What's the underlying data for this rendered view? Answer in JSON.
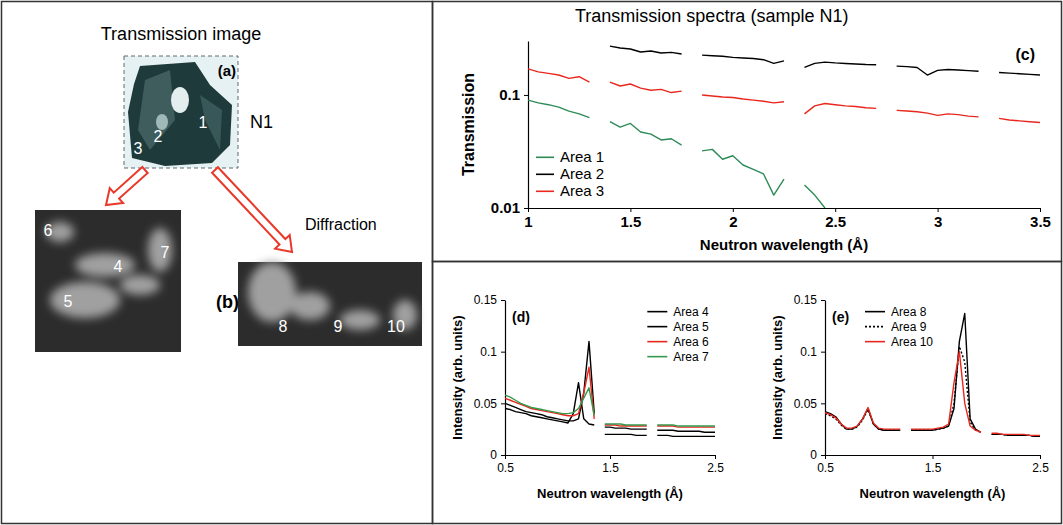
{
  "chart_data": [
    {
      "type": "line",
      "title": "Transmission spectra (sample N1)",
      "annotations": [
        "(c)"
      ],
      "xlabel": "Neutron wavelength (Å)",
      "ylabel": "Transmission",
      "log": "y",
      "x": [
        1,
        1.05,
        1.1,
        1.15,
        1.2,
        1.25,
        1.3,
        1.35,
        1.4,
        1.45,
        1.5,
        1.55,
        1.6,
        1.65,
        1.7,
        1.75,
        1.8,
        1.85,
        1.9,
        1.95,
        2,
        2.05,
        2.1,
        2.15,
        2.2,
        2.25,
        2.3,
        2.35,
        2.4,
        2.45,
        2.5,
        2.55,
        2.6,
        2.65,
        2.7,
        2.75,
        2.8,
        2.85,
        2.9,
        2.95,
        3,
        3.05,
        3.1,
        3.15,
        3.2,
        3.25,
        3.3,
        3.35,
        3.4,
        3.45,
        3.5
      ],
      "xlim": [
        1,
        3.5
      ],
      "xticks": [
        1,
        1.5,
        2,
        2.5,
        3,
        3.5
      ],
      "ylim": [
        0.01,
        0.3
      ],
      "yticks": [
        0.01,
        0.1
      ],
      "legend": "lower left",
      "series": [
        {
          "name": "Area 1",
          "color": "#2e8b57",
          "line_style": "solid",
          "values": [
            0.09,
            0.085,
            0.082,
            0.078,
            0.072,
            0.068,
            0.063,
            null,
            0.058,
            0.052,
            0.056,
            0.047,
            0.045,
            0.04,
            0.041,
            0.036,
            null,
            0.032,
            0.033,
            0.027,
            0.029,
            0.024,
            0.022,
            0.02,
            0.013,
            0.018,
            null,
            0.016,
            0.013,
            0.01,
            null,
            null,
            null,
            null,
            null,
            null,
            null,
            null,
            null,
            null,
            null,
            null,
            null,
            null,
            null,
            null,
            null,
            null,
            null,
            null,
            null
          ]
        },
        {
          "name": "Area 2",
          "color": "#000000",
          "line_style": "solid",
          "values": [
            null,
            null,
            null,
            null,
            null,
            null,
            null,
            null,
            0.27,
            0.26,
            0.255,
            0.24,
            0.245,
            0.235,
            0.238,
            0.23,
            null,
            0.225,
            0.222,
            0.22,
            0.215,
            0.212,
            0.21,
            0.205,
            0.19,
            0.2,
            null,
            0.175,
            0.19,
            0.195,
            0.192,
            0.19,
            0.188,
            0.186,
            0.185,
            null,
            0.18,
            0.178,
            0.175,
            0.15,
            0.165,
            0.168,
            0.166,
            0.164,
            0.162,
            null,
            0.158,
            0.156,
            0.154,
            0.152,
            0.15
          ]
        },
        {
          "name": "Area 3",
          "color": "#e8281e",
          "line_style": "solid",
          "values": [
            0.17,
            0.16,
            0.155,
            0.15,
            0.14,
            0.145,
            0.13,
            null,
            0.13,
            0.12,
            0.125,
            0.115,
            0.11,
            0.112,
            0.105,
            0.108,
            null,
            0.1,
            0.098,
            0.096,
            0.095,
            0.092,
            0.09,
            0.088,
            0.085,
            0.087,
            null,
            0.068,
            0.08,
            0.084,
            0.082,
            0.08,
            0.079,
            0.077,
            0.076,
            null,
            0.073,
            0.072,
            0.071,
            0.069,
            0.066,
            0.068,
            0.067,
            0.065,
            0.064,
            null,
            0.062,
            0.06,
            0.059,
            0.058,
            0.057
          ]
        }
      ]
    },
    {
      "type": "line",
      "annotations": [
        "(d)"
      ],
      "xlabel": "Neutron wavelength (Å)",
      "ylabel": "Intensity (arb. units)",
      "x": [
        0.5,
        0.55,
        0.6,
        0.65,
        0.7,
        0.75,
        0.8,
        0.85,
        0.9,
        0.95,
        1,
        1.05,
        1.1,
        1.15,
        1.2,
        1.25,
        1.3,
        1.35,
        1.4,
        1.45,
        1.5,
        1.55,
        1.6,
        1.65,
        1.7,
        1.75,
        1.8,
        1.85,
        1.9,
        1.95,
        2,
        2.05,
        2.1,
        2.15,
        2.2,
        2.25,
        2.3,
        2.35,
        2.4,
        2.45,
        2.5
      ],
      "xlim": [
        0.5,
        2.5
      ],
      "xticks": [
        0.5,
        1.5,
        2.5
      ],
      "ylim": [
        0,
        0.15
      ],
      "yticks": [
        0,
        0.05,
        0.1,
        0.15
      ],
      "legend": "upper right",
      "series": [
        {
          "name": "Area 4",
          "color": "#000000",
          "line_style": "solid",
          "values": [
            0.045,
            0.044,
            0.042,
            0.041,
            0.04,
            0.038,
            0.037,
            0.036,
            0.035,
            0.034,
            0.033,
            0.032,
            0.031,
            0.04,
            0.07,
            0.035,
            0.03,
            0.029,
            null,
            0.027,
            0.027,
            0.026,
            0.026,
            0.026,
            0.025,
            0.025,
            0.025,
            0.025,
            null,
            0.024,
            0.024,
            0.024,
            0.024,
            0.023,
            0.023,
            0.023,
            0.023,
            0.023,
            0.022,
            0.022,
            0.022
          ]
        },
        {
          "name": "Area 5",
          "color": "#000000",
          "line_style": "solid",
          "values": [
            0.05,
            0.048,
            0.046,
            0.044,
            0.042,
            0.041,
            0.04,
            0.039,
            0.037,
            0.036,
            0.035,
            0.034,
            0.033,
            0.033,
            0.035,
            0.06,
            0.11,
            0.04,
            null,
            0.02,
            0.02,
            0.02,
            0.02,
            0.02,
            0.02,
            0.019,
            0.019,
            0.019,
            null,
            0.019,
            0.019,
            0.019,
            0.018,
            0.018,
            0.018,
            0.018,
            0.018,
            0.018,
            0.018,
            0.018,
            0.018
          ]
        },
        {
          "name": "Area 6",
          "color": "#e8281e",
          "line_style": "solid",
          "values": [
            0.055,
            0.053,
            0.051,
            0.049,
            0.047,
            0.045,
            0.044,
            0.043,
            0.042,
            0.041,
            0.04,
            0.039,
            0.038,
            0.038,
            0.04,
            0.06,
            0.085,
            0.035,
            null,
            0.029,
            0.029,
            0.029,
            0.028,
            0.028,
            0.028,
            0.028,
            0.028,
            0.028,
            null,
            0.028,
            0.028,
            0.028,
            0.028,
            0.027,
            0.027,
            0.027,
            0.027,
            0.027,
            0.027,
            0.027,
            0.027
          ]
        },
        {
          "name": "Area 7",
          "color": "#33994d",
          "line_style": "solid",
          "values": [
            0.058,
            0.056,
            0.053,
            0.05,
            0.048,
            0.046,
            0.045,
            0.044,
            0.043,
            0.042,
            0.041,
            0.04,
            0.04,
            0.041,
            0.045,
            0.055,
            0.065,
            0.038,
            null,
            0.03,
            0.03,
            0.03,
            0.03,
            0.029,
            0.029,
            0.029,
            0.029,
            0.029,
            null,
            0.029,
            0.029,
            0.029,
            0.029,
            0.028,
            0.028,
            0.028,
            0.028,
            0.028,
            0.028,
            0.028,
            0.028
          ]
        }
      ]
    },
    {
      "type": "line",
      "annotations": [
        "(e)"
      ],
      "xlabel": "Neutron wavelength (Å)",
      "ylabel": "Intensity (arb. units)",
      "x": [
        0.5,
        0.55,
        0.6,
        0.65,
        0.7,
        0.75,
        0.8,
        0.85,
        0.9,
        0.95,
        1,
        1.05,
        1.1,
        1.15,
        1.2,
        1.25,
        1.3,
        1.35,
        1.4,
        1.45,
        1.5,
        1.55,
        1.6,
        1.65,
        1.7,
        1.75,
        1.8,
        1.85,
        1.9,
        1.95,
        2,
        2.05,
        2.1,
        2.15,
        2.2,
        2.25,
        2.3,
        2.35,
        2.4,
        2.45,
        2.5
      ],
      "xlim": [
        0.5,
        2.5
      ],
      "xticks": [
        0.5,
        1.5,
        2.5
      ],
      "ylim": [
        0,
        0.15
      ],
      "yticks": [
        0,
        0.05,
        0.1,
        0.15
      ],
      "legend": "upper left",
      "series": [
        {
          "name": "Area 8",
          "color": "#000000",
          "line_style": "solid",
          "values": [
            0.042,
            0.04,
            0.037,
            0.03,
            0.025,
            0.025,
            0.028,
            0.035,
            0.045,
            0.03,
            0.025,
            0.024,
            0.024,
            0.024,
            0.024,
            null,
            0.024,
            0.024,
            0.024,
            0.024,
            0.024,
            0.025,
            0.026,
            0.028,
            0.045,
            0.11,
            0.137,
            0.035,
            0.025,
            0.022,
            null,
            0.02,
            0.02,
            0.02,
            0.019,
            0.019,
            0.019,
            0.019,
            0.019,
            0.018,
            0.018
          ]
        },
        {
          "name": "Area 9",
          "color": "#000000",
          "line_style": "dotted",
          "values": [
            0.04,
            0.038,
            0.035,
            0.029,
            0.025,
            0.025,
            0.027,
            0.034,
            0.044,
            0.03,
            0.025,
            0.024,
            0.024,
            0.024,
            0.024,
            null,
            0.024,
            0.024,
            0.024,
            0.024,
            0.024,
            0.025,
            0.026,
            0.028,
            0.05,
            0.105,
            0.09,
            0.032,
            0.024,
            0.022,
            null,
            0.02,
            0.02,
            0.02,
            0.019,
            0.019,
            0.019,
            0.019,
            0.019,
            0.018,
            0.018
          ]
        },
        {
          "name": "Area 10",
          "color": "#e8281e",
          "line_style": "solid",
          "values": [
            0.041,
            0.039,
            0.036,
            0.03,
            0.026,
            0.026,
            0.028,
            0.035,
            0.046,
            0.031,
            0.026,
            0.025,
            0.025,
            0.025,
            0.025,
            null,
            0.025,
            0.025,
            0.025,
            0.025,
            0.025,
            0.026,
            0.027,
            0.03,
            0.07,
            0.1,
            0.05,
            0.028,
            0.024,
            0.022,
            null,
            0.021,
            0.021,
            0.02,
            0.02,
            0.02,
            0.02,
            0.02,
            0.019,
            0.019,
            0.019
          ]
        }
      ]
    }
  ],
  "panels": {
    "transmission_image": {
      "title": "Transmission image",
      "letter": "(a)",
      "sample": "N1",
      "areas": [
        "1",
        "2",
        "3"
      ]
    },
    "diffraction": {
      "title": "Diffraction",
      "letter": "(b)",
      "left_image_areas": [
        "4",
        "5",
        "6",
        "7"
      ],
      "right_image_areas": [
        "8",
        "9",
        "10"
      ]
    }
  }
}
